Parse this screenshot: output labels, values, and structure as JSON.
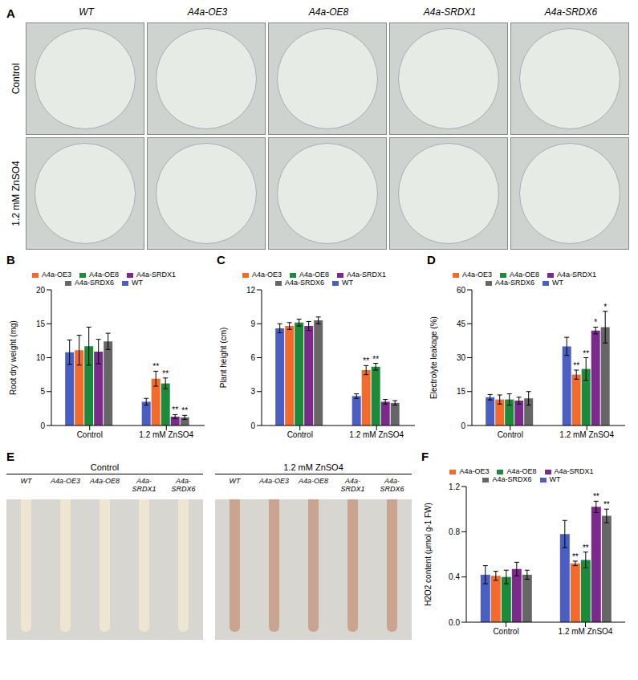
{
  "chart_data": [
    {
      "panel": "B",
      "type": "bar",
      "y_label": "Root dry weight (mg)",
      "categories": [
        "Control",
        "1.2 mM ZnSO4"
      ],
      "ylim": [
        0,
        20
      ],
      "yticks": [
        0,
        5,
        10,
        15,
        20
      ],
      "legend": "top",
      "series": [
        {
          "name": "WT",
          "color": "#4a5fc1",
          "values": [
            10.8,
            3.5
          ],
          "errors": [
            1.8,
            0.5
          ],
          "significance": [
            null,
            null
          ]
        },
        {
          "name": "A4a-OE3",
          "color": "#f26b2a",
          "values": [
            11.1,
            6.9
          ],
          "errors": [
            2.2,
            1.1
          ],
          "significance": [
            null,
            "**"
          ]
        },
        {
          "name": "A4a-OE8",
          "color": "#1b8a3a",
          "values": [
            11.7,
            6.2
          ],
          "errors": [
            2.8,
            0.8
          ],
          "significance": [
            null,
            "**"
          ]
        },
        {
          "name": "A4a-SRDX1",
          "color": "#7b2a8c",
          "values": [
            10.9,
            1.3
          ],
          "errors": [
            1.8,
            0.3
          ],
          "significance": [
            null,
            "**"
          ]
        },
        {
          "name": "A4a-SRDX6",
          "color": "#666666",
          "values": [
            12.4,
            1.2
          ],
          "errors": [
            1.2,
            0.3
          ],
          "significance": [
            null,
            "**"
          ]
        }
      ]
    },
    {
      "panel": "C",
      "type": "bar",
      "y_label": "Plant height (cm)",
      "categories": [
        "Control",
        "1.2 mM ZnSO4"
      ],
      "ylim": [
        0,
        12
      ],
      "yticks": [
        0,
        3,
        6,
        9,
        12
      ],
      "legend": "top",
      "series": [
        {
          "name": "WT",
          "color": "#4a5fc1",
          "values": [
            8.6,
            2.6
          ],
          "errors": [
            0.4,
            0.2
          ],
          "significance": [
            null,
            null
          ]
        },
        {
          "name": "A4a-OE3",
          "color": "#f26b2a",
          "values": [
            8.8,
            4.9
          ],
          "errors": [
            0.3,
            0.4
          ],
          "significance": [
            null,
            "**"
          ]
        },
        {
          "name": "A4a-OE8",
          "color": "#1b8a3a",
          "values": [
            9.1,
            5.2
          ],
          "errors": [
            0.3,
            0.3
          ],
          "significance": [
            null,
            "**"
          ]
        },
        {
          "name": "A4a-SRDX1",
          "color": "#7b2a8c",
          "values": [
            8.8,
            2.1
          ],
          "errors": [
            0.4,
            0.2
          ],
          "significance": [
            null,
            null
          ]
        },
        {
          "name": "A4a-SRDX6",
          "color": "#666666",
          "values": [
            9.3,
            2.0
          ],
          "errors": [
            0.3,
            0.2
          ],
          "significance": [
            null,
            null
          ]
        }
      ]
    },
    {
      "panel": "D",
      "type": "bar",
      "y_label": "Electrolyte leakage (%)",
      "categories": [
        "Control",
        "1.2 mM ZnSO4"
      ],
      "ylim": [
        0,
        60
      ],
      "yticks": [
        0,
        15,
        30,
        45,
        60
      ],
      "legend": "top",
      "series": [
        {
          "name": "WT",
          "color": "#4a5fc1",
          "values": [
            12.5,
            35
          ],
          "errors": [
            1.2,
            4
          ],
          "significance": [
            null,
            null
          ]
        },
        {
          "name": "A4a-OE3",
          "color": "#f26b2a",
          "values": [
            11.5,
            22.5
          ],
          "errors": [
            2,
            2
          ],
          "significance": [
            null,
            "**"
          ]
        },
        {
          "name": "A4a-OE8",
          "color": "#1b8a3a",
          "values": [
            11.5,
            25
          ],
          "errors": [
            2.5,
            5
          ],
          "significance": [
            null,
            "**"
          ]
        },
        {
          "name": "A4a-SRDX1",
          "color": "#7b2a8c",
          "values": [
            11,
            42
          ],
          "errors": [
            1.5,
            1.5
          ],
          "significance": [
            null,
            "*"
          ]
        },
        {
          "name": "A4a-SRDX6",
          "color": "#666666",
          "values": [
            12,
            43.5
          ],
          "errors": [
            3,
            7
          ],
          "significance": [
            null,
            "*"
          ]
        }
      ]
    },
    {
      "panel": "F",
      "type": "bar",
      "y_label": "H2O2 content (μmol g-1 FW)",
      "categories": [
        "Control",
        "1.2 mM ZnSO4"
      ],
      "ylim": [
        0,
        1.2
      ],
      "yticks": [
        {
          "value": 0,
          "label": "0.0"
        },
        0.4,
        0.8,
        1.2
      ],
      "legend": "top",
      "series": [
        {
          "name": "WT",
          "color": "#4a5fc1",
          "values": [
            0.42,
            0.78
          ],
          "errors": [
            0.08,
            0.12
          ],
          "significance": [
            null,
            null
          ]
        },
        {
          "name": "A4a-OE3",
          "color": "#f26b2a",
          "values": [
            0.41,
            0.52
          ],
          "errors": [
            0.04,
            0.02
          ],
          "significance": [
            null,
            "**"
          ]
        },
        {
          "name": "A4a-OE8",
          "color": "#1b8a3a",
          "values": [
            0.4,
            0.55
          ],
          "errors": [
            0.06,
            0.07
          ],
          "significance": [
            null,
            "**"
          ]
        },
        {
          "name": "A4a-SRDX1",
          "color": "#7b2a8c",
          "values": [
            0.47,
            1.02
          ],
          "errors": [
            0.06,
            0.05
          ],
          "significance": [
            null,
            "**"
          ]
        },
        {
          "name": "A4a-SRDX6",
          "color": "#666666",
          "values": [
            0.42,
            0.94
          ],
          "errors": [
            0.04,
            0.06
          ],
          "significance": [
            null,
            "**"
          ]
        }
      ]
    }
  ],
  "photo_panels": [
    {
      "panel": "A",
      "columns": [
        "WT",
        "A4a-OE3",
        "A4a-OE8",
        "A4a-SRDX1",
        "A4a-SRDX6"
      ],
      "rows": [
        "Control",
        "1.2 mM ZnSO4"
      ]
    },
    {
      "panel": "E",
      "groups": [
        {
          "title": "Control",
          "columns": [
            "WT",
            "A4a-OE3",
            "A4a-OE8",
            "A4a-SRDX1",
            "A4a-SRDX6"
          ]
        },
        {
          "title": "1.2 mM ZnSO4",
          "columns": [
            "WT",
            "A4a-OE3",
            "A4a-OE8",
            "A4a-SRDX1",
            "A4a-SRDX6"
          ]
        }
      ]
    }
  ]
}
